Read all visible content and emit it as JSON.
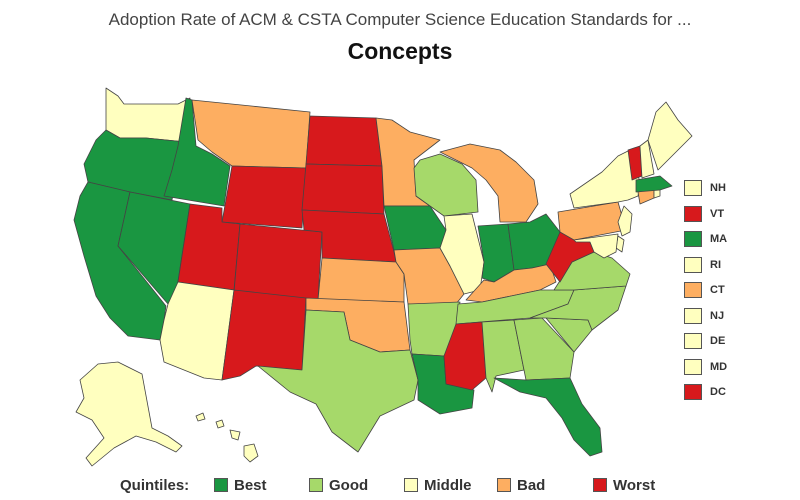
{
  "subtitle": "Adoption Rate of ACM & CSTA Computer Science Education Standards for ...",
  "title": "Concepts",
  "colors": {
    "best": "#1a9641",
    "good": "#a6d96a",
    "middle": "#ffffbf",
    "bad": "#fdae61",
    "worst": "#d7191c"
  },
  "legend": {
    "title": "Quintiles:",
    "items": [
      {
        "label": "Best",
        "cls": "best"
      },
      {
        "label": "Good",
        "cls": "good"
      },
      {
        "label": "Middle",
        "cls": "middle"
      },
      {
        "label": "Bad",
        "cls": "bad"
      },
      {
        "label": "Worst",
        "cls": "worst"
      }
    ]
  },
  "small_states": [
    {
      "abbr": "NH",
      "cls": "middle"
    },
    {
      "abbr": "VT",
      "cls": "worst"
    },
    {
      "abbr": "MA",
      "cls": "best"
    },
    {
      "abbr": "RI",
      "cls": "middle"
    },
    {
      "abbr": "CT",
      "cls": "bad"
    },
    {
      "abbr": "NJ",
      "cls": "middle"
    },
    {
      "abbr": "DE",
      "cls": "middle"
    },
    {
      "abbr": "MD",
      "cls": "middle"
    },
    {
      "abbr": "DC",
      "cls": "worst"
    }
  ],
  "states": {
    "WA": "middle",
    "OR": "best",
    "CA": "best",
    "NV": "best",
    "ID": "best",
    "MT": "bad",
    "WY": "worst",
    "UT": "worst",
    "CO": "worst",
    "AZ": "middle",
    "NM": "worst",
    "ND": "worst",
    "SD": "worst",
    "NE": "worst",
    "KS": "bad",
    "OK": "bad",
    "TX": "good",
    "MN": "bad",
    "IA": "best",
    "MO": "bad",
    "AR": "good",
    "LA": "best",
    "WI": "good",
    "IL": "middle",
    "MI": "bad",
    "IN": "best",
    "OH": "best",
    "KY": "bad",
    "TN": "good",
    "MS": "worst",
    "AL": "good",
    "GA": "good",
    "FL": "best",
    "SC": "good",
    "NC": "good",
    "VA": "good",
    "WV": "worst",
    "PA": "bad",
    "NY": "middle",
    "ME": "middle",
    "VT": "worst",
    "NH": "middle",
    "MA": "best",
    "CT": "bad",
    "RI": "middle",
    "NJ": "middle",
    "DE": "middle",
    "MD": "middle",
    "AK": "middle",
    "HI": "middle"
  }
}
